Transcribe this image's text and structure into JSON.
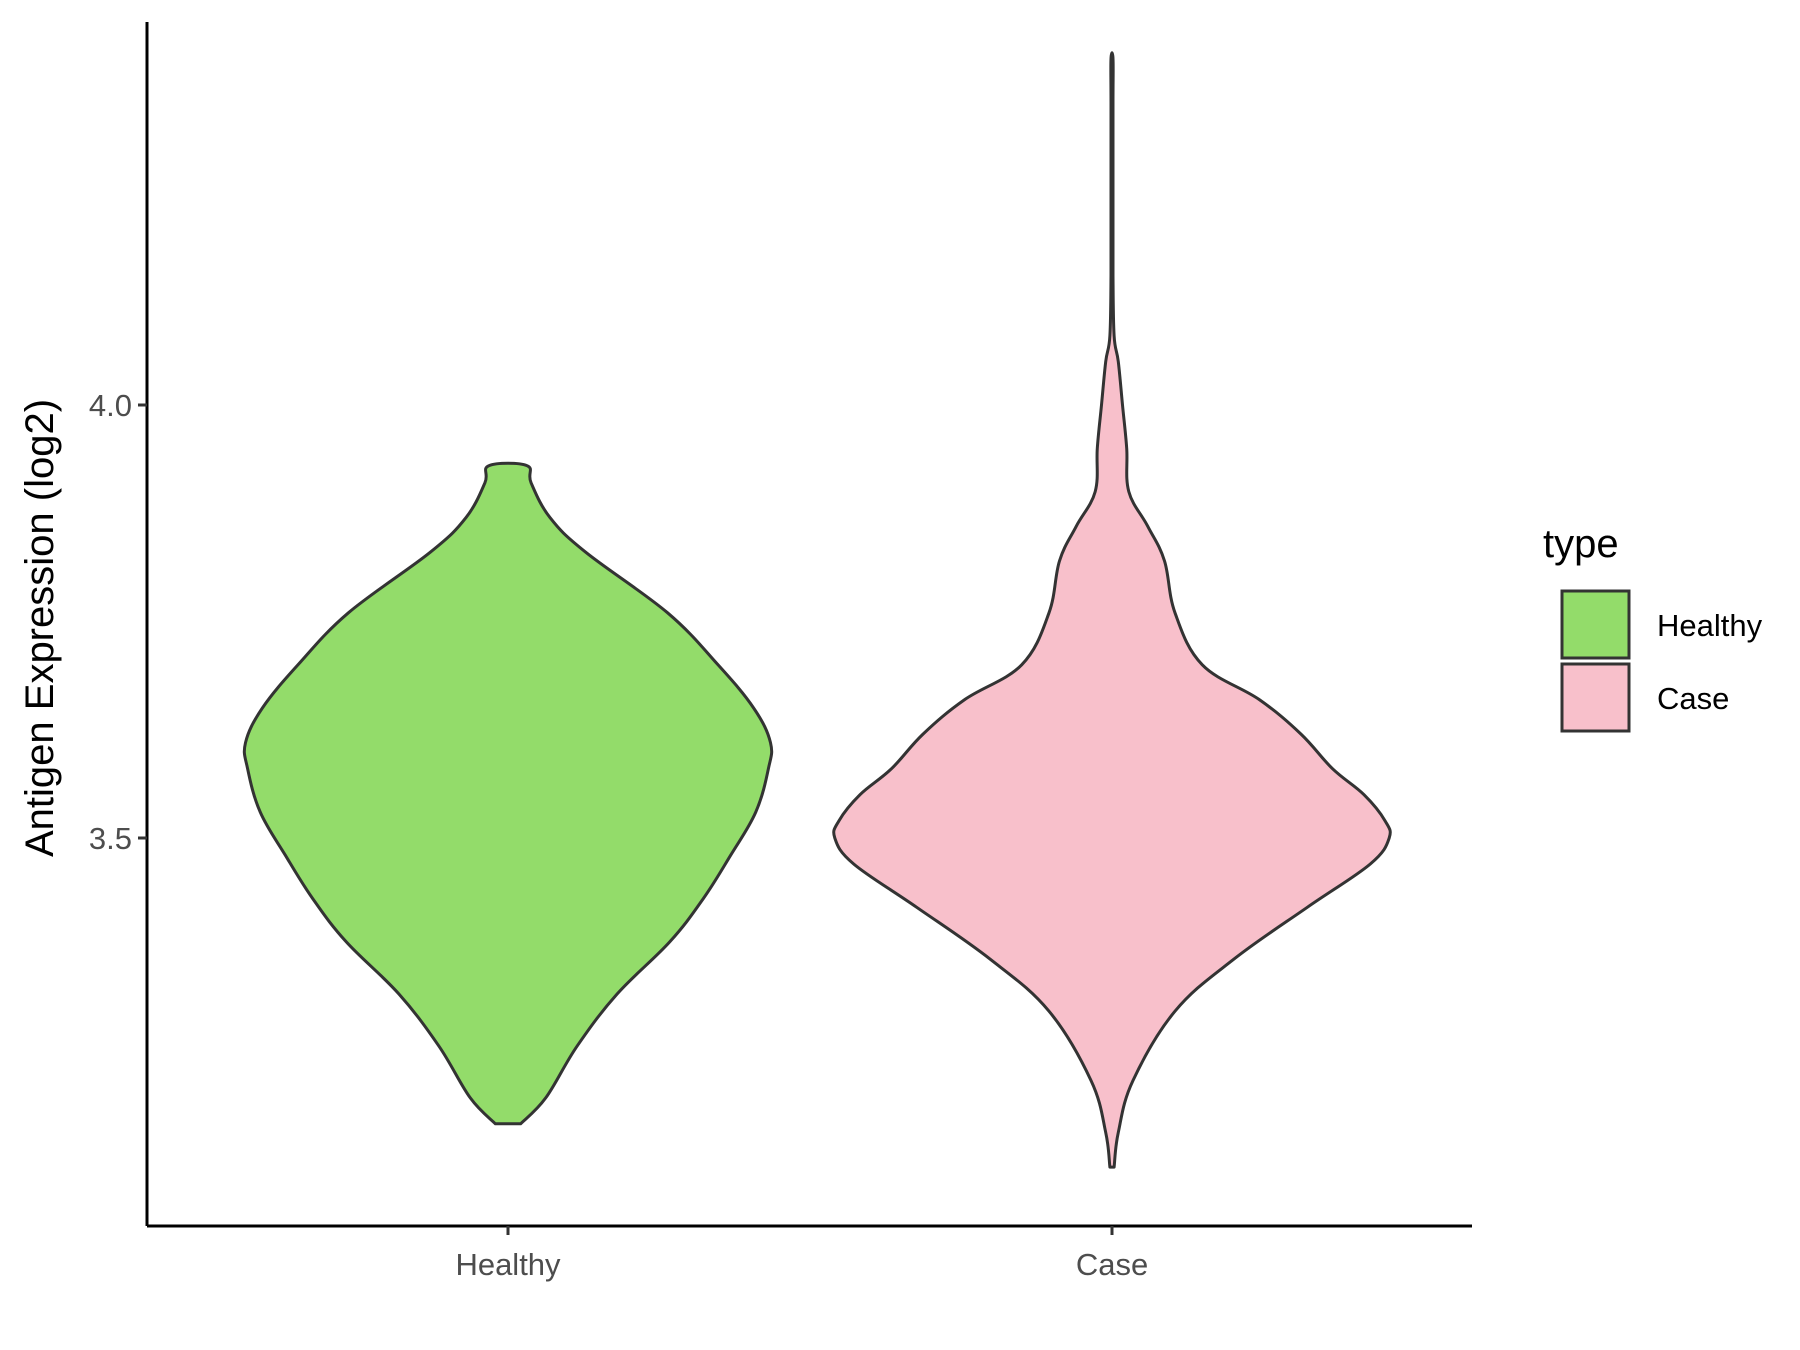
{
  "chart_data": {
    "type": "violin",
    "ylabel": "Antigen Expression (log2)",
    "xlabel": "",
    "categories": [
      "Healthy",
      "Case"
    ],
    "yticks": [
      {
        "value": 3.5,
        "label": "3.5"
      },
      {
        "value": 4.0,
        "label": "4.0"
      }
    ],
    "ylim": [
      3.05,
      4.44
    ],
    "legend": {
      "title": "type",
      "position": "right",
      "entries": [
        {
          "label": "Healthy",
          "color": "#93DC6A"
        },
        {
          "label": "Case",
          "color": "#F8C0CB"
        }
      ]
    },
    "series": [
      {
        "name": "Healthy",
        "color": "#93DC6A",
        "profile": [
          [
            3.17,
            0.06
          ],
          [
            3.2,
            0.18
          ],
          [
            3.26,
            0.33
          ],
          [
            3.32,
            0.52
          ],
          [
            3.38,
            0.77
          ],
          [
            3.43,
            0.93
          ],
          [
            3.48,
            1.06
          ],
          [
            3.53,
            1.18
          ],
          [
            3.58,
            1.24
          ],
          [
            3.61,
            1.25
          ],
          [
            3.65,
            1.17
          ],
          [
            3.7,
            1.0
          ],
          [
            3.76,
            0.76
          ],
          [
            3.83,
            0.37
          ],
          [
            3.87,
            0.2
          ],
          [
            3.91,
            0.11
          ],
          [
            3.93,
            0.09
          ]
        ]
      },
      {
        "name": "Case",
        "color": "#F8C0CB",
        "profile": [
          [
            3.12,
            0.01
          ],
          [
            3.16,
            0.03
          ],
          [
            3.22,
            0.1
          ],
          [
            3.3,
            0.3
          ],
          [
            3.36,
            0.58
          ],
          [
            3.42,
            0.93
          ],
          [
            3.47,
            1.23
          ],
          [
            3.5,
            1.32
          ],
          [
            3.52,
            1.3
          ],
          [
            3.55,
            1.2
          ],
          [
            3.58,
            1.05
          ],
          [
            3.62,
            0.9
          ],
          [
            3.66,
            0.7
          ],
          [
            3.7,
            0.43
          ],
          [
            3.76,
            0.3
          ],
          [
            3.82,
            0.25
          ],
          [
            3.86,
            0.17
          ],
          [
            3.9,
            0.08
          ],
          [
            3.95,
            0.07
          ],
          [
            4.0,
            0.05
          ],
          [
            4.05,
            0.03
          ],
          [
            4.08,
            0.01
          ],
          [
            4.15,
            0.005
          ],
          [
            4.25,
            0.005
          ],
          [
            4.35,
            0.005
          ],
          [
            4.4,
            0.005
          ]
        ]
      }
    ]
  }
}
